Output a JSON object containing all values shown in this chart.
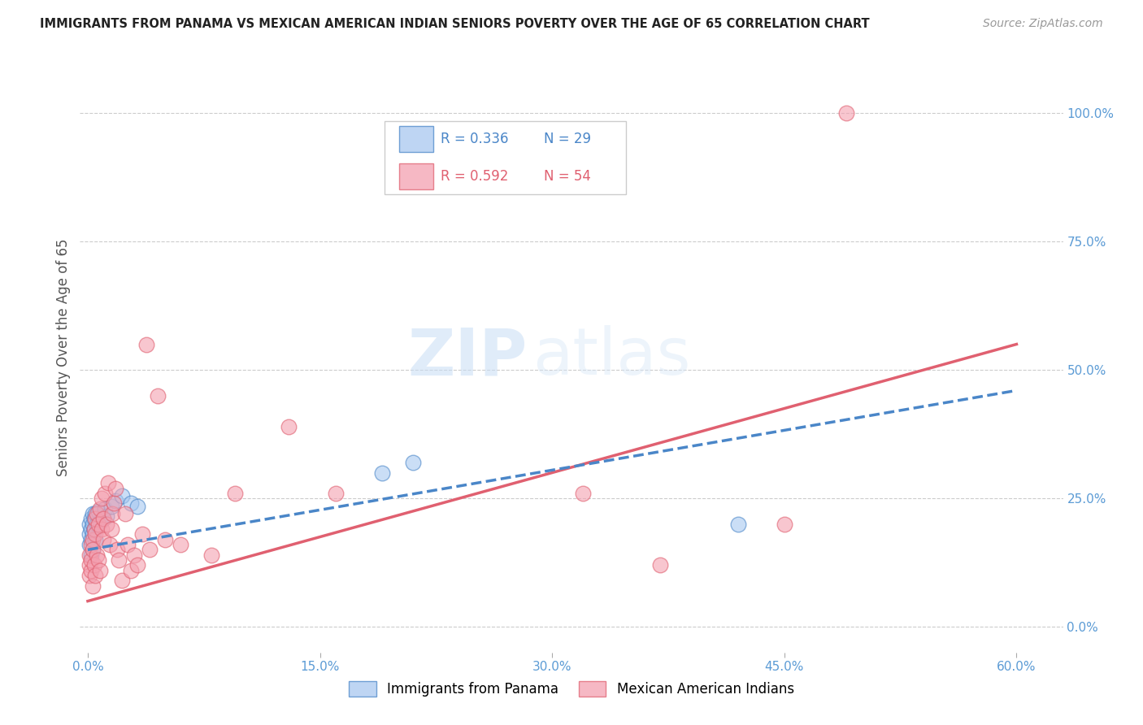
{
  "title": "IMMIGRANTS FROM PANAMA VS MEXICAN AMERICAN INDIAN SENIORS POVERTY OVER THE AGE OF 65 CORRELATION CHART",
  "source": "Source: ZipAtlas.com",
  "xlabel_ticks": [
    "0.0%",
    "15.0%",
    "30.0%",
    "45.0%",
    "60.0%"
  ],
  "xlabel_vals": [
    0.0,
    0.15,
    0.3,
    0.45,
    0.6
  ],
  "ylabel_ticks": [
    "0.0%",
    "25.0%",
    "50.0%",
    "75.0%",
    "100.0%"
  ],
  "ylabel_vals": [
    0.0,
    0.25,
    0.5,
    0.75,
    1.0
  ],
  "xlim": [
    -0.005,
    0.63
  ],
  "ylim": [
    -0.05,
    1.1
  ],
  "ylabel": "Seniors Poverty Over the Age of 65",
  "R_blue": 0.336,
  "N_blue": 29,
  "R_pink": 0.592,
  "N_pink": 54,
  "blue_color": "#a8c8f0",
  "pink_color": "#f4a0b0",
  "blue_line_color": "#4a86c8",
  "pink_line_color": "#e06070",
  "watermark_zip": "ZIP",
  "watermark_atlas": "atlas",
  "legend_label_blue": "Immigrants from Panama",
  "legend_label_pink": "Mexican American Indians",
  "blue_x": [
    0.001,
    0.001,
    0.001,
    0.002,
    0.002,
    0.002,
    0.002,
    0.003,
    0.003,
    0.003,
    0.003,
    0.004,
    0.004,
    0.005,
    0.005,
    0.006,
    0.007,
    0.008,
    0.01,
    0.011,
    0.012,
    0.015,
    0.018,
    0.022,
    0.028,
    0.032,
    0.19,
    0.21,
    0.42
  ],
  "blue_y": [
    0.16,
    0.18,
    0.2,
    0.14,
    0.17,
    0.19,
    0.21,
    0.15,
    0.18,
    0.22,
    0.2,
    0.19,
    0.21,
    0.17,
    0.22,
    0.2,
    0.225,
    0.205,
    0.21,
    0.23,
    0.215,
    0.235,
    0.245,
    0.255,
    0.24,
    0.235,
    0.3,
    0.32,
    0.2
  ],
  "pink_x": [
    0.001,
    0.001,
    0.001,
    0.002,
    0.002,
    0.002,
    0.003,
    0.003,
    0.003,
    0.004,
    0.004,
    0.005,
    0.005,
    0.005,
    0.006,
    0.006,
    0.007,
    0.007,
    0.008,
    0.008,
    0.009,
    0.009,
    0.01,
    0.01,
    0.011,
    0.012,
    0.013,
    0.014,
    0.015,
    0.016,
    0.017,
    0.018,
    0.019,
    0.02,
    0.022,
    0.024,
    0.026,
    0.028,
    0.03,
    0.032,
    0.035,
    0.038,
    0.04,
    0.045,
    0.05,
    0.06,
    0.08,
    0.095,
    0.13,
    0.16,
    0.32,
    0.37,
    0.45,
    0.49
  ],
  "pink_y": [
    0.12,
    0.14,
    0.1,
    0.11,
    0.16,
    0.13,
    0.08,
    0.17,
    0.15,
    0.12,
    0.19,
    0.1,
    0.18,
    0.21,
    0.14,
    0.22,
    0.13,
    0.2,
    0.11,
    0.23,
    0.19,
    0.25,
    0.17,
    0.21,
    0.26,
    0.2,
    0.28,
    0.16,
    0.19,
    0.22,
    0.24,
    0.27,
    0.15,
    0.13,
    0.09,
    0.22,
    0.16,
    0.11,
    0.14,
    0.12,
    0.18,
    0.55,
    0.15,
    0.45,
    0.17,
    0.16,
    0.14,
    0.26,
    0.39,
    0.26,
    0.26,
    0.12,
    0.2,
    1.0
  ],
  "pink_line_x": [
    0.0,
    0.6
  ],
  "pink_line_y": [
    0.05,
    0.55
  ],
  "blue_line_x": [
    0.0,
    0.6
  ],
  "blue_line_y": [
    0.15,
    0.46
  ]
}
